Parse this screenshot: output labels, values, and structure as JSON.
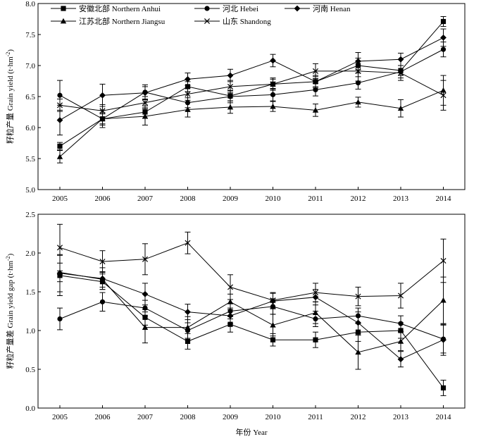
{
  "chart_data": [
    {
      "type": "line",
      "ylabel": "籽粒产量 Grain yield (t·hm-2)",
      "ylabel_main": "籽粒产量 Grain yield (t·hm",
      "ylabel_sup": "-2",
      "ylabel_close": ")",
      "xlabel": "",
      "ylim": [
        5.0,
        8.0
      ],
      "yticks": [
        "5.0",
        "5.5",
        "6.0",
        "6.5",
        "7.0",
        "7.5",
        "8.0"
      ],
      "x": [
        "2005",
        "2006",
        "2007",
        "2008",
        "2009",
        "2010",
        "2011",
        "2012",
        "2013",
        "2014"
      ],
      "grid": false,
      "legend_position": "top",
      "series": [
        {
          "name": "安徽北部 Northern Anhui",
          "marker": "square",
          "values": [
            5.7,
            6.14,
            6.25,
            6.66,
            6.51,
            6.7,
            6.74,
            7.0,
            6.92,
            7.71
          ],
          "errors": [
            0.06,
            0.14,
            0.1,
            0.08,
            0.08,
            0.08,
            0.08,
            0.12,
            0.08,
            0.08
          ]
        },
        {
          "name": "河北 Hebei",
          "marker": "circle",
          "values": [
            6.52,
            6.14,
            6.57,
            6.4,
            6.5,
            6.53,
            6.61,
            6.72,
            6.9,
            7.26
          ],
          "errors": [
            0.24,
            0.1,
            0.12,
            0.08,
            0.1,
            0.1,
            0.1,
            0.1,
            0.1,
            0.12
          ]
        },
        {
          "name": "河南 Henan",
          "marker": "diamond",
          "values": [
            6.12,
            6.52,
            6.56,
            6.78,
            6.84,
            7.08,
            6.74,
            7.07,
            7.1,
            7.45
          ],
          "errors": [
            0.24,
            0.18,
            0.1,
            0.1,
            0.1,
            0.1,
            0.1,
            0.14,
            0.1,
            0.14
          ]
        },
        {
          "name": "江苏北部 Northern Jiangsu",
          "marker": "triangle",
          "values": [
            5.53,
            6.14,
            6.18,
            6.29,
            6.33,
            6.34,
            6.28,
            6.41,
            6.31,
            6.6
          ],
          "errors": [
            0.1,
            0.08,
            0.14,
            0.12,
            0.1,
            0.08,
            0.1,
            0.08,
            0.14,
            0.24
          ]
        },
        {
          "name": "山东 Shandong",
          "marker": "x",
          "values": [
            6.36,
            6.27,
            6.4,
            6.54,
            6.66,
            6.7,
            6.91,
            6.91,
            6.88,
            6.52
          ],
          "errors": [
            0.1,
            0.1,
            0.1,
            0.1,
            0.1,
            0.1,
            0.12,
            0.16,
            0.12,
            0.24
          ]
        }
      ]
    },
    {
      "type": "line",
      "ylabel": "籽粒产量差 Grain yield gap (t·hm-2)",
      "ylabel_main": "籽粒产量差 Grain yield gap (t·hm",
      "ylabel_sup": "-2",
      "ylabel_close": ")",
      "xlabel": "年份 Year",
      "ylim": [
        0.0,
        2.5
      ],
      "yticks": [
        "0.0",
        "0.5",
        "1.0",
        "1.5",
        "2.0",
        "2.5"
      ],
      "x": [
        "2005",
        "2006",
        "2007",
        "2008",
        "2009",
        "2010",
        "2011",
        "2012",
        "2013",
        "2014"
      ],
      "grid": false,
      "series": [
        {
          "name": "安徽北部 Northern Anhui",
          "marker": "square",
          "values": [
            1.71,
            1.63,
            1.17,
            0.86,
            1.08,
            0.88,
            0.88,
            0.98,
            1.0,
            0.26
          ],
          "errors": [
            0.26,
            0.1,
            0.1,
            0.1,
            0.1,
            0.08,
            0.1,
            0.12,
            0.1,
            0.1
          ]
        },
        {
          "name": "河北 Hebei",
          "marker": "circle",
          "values": [
            1.15,
            1.37,
            1.29,
            1.0,
            1.25,
            1.31,
            1.15,
            1.19,
            1.09,
            0.89
          ],
          "errors": [
            0.14,
            0.12,
            0.1,
            0.1,
            0.1,
            0.1,
            0.1,
            0.1,
            0.1,
            0.18
          ]
        },
        {
          "name": "河南 Henan",
          "marker": "diamond",
          "values": [
            1.74,
            1.67,
            1.47,
            1.24,
            1.19,
            1.38,
            1.43,
            1.1,
            0.63,
            0.88
          ],
          "errors": [
            0.24,
            0.14,
            0.14,
            0.1,
            0.1,
            0.1,
            0.1,
            0.14,
            0.1,
            0.2
          ]
        },
        {
          "name": "江苏北部 Northern Jiangsu",
          "marker": "triangle",
          "values": [
            1.75,
            1.66,
            1.04,
            1.04,
            1.37,
            1.07,
            1.23,
            0.72,
            0.86,
            1.39
          ],
          "errors": [
            0.12,
            0.1,
            0.2,
            0.14,
            0.1,
            0.14,
            0.14,
            0.22,
            0.12,
            0.3
          ]
        },
        {
          "name": "山东 Shandong",
          "marker": "x",
          "values": [
            2.07,
            1.89,
            1.92,
            2.13,
            1.56,
            1.39,
            1.49,
            1.44,
            1.45,
            1.9
          ],
          "errors": [
            0.3,
            0.14,
            0.2,
            0.14,
            0.16,
            0.1,
            0.12,
            0.12,
            0.16,
            0.28
          ]
        }
      ]
    }
  ]
}
